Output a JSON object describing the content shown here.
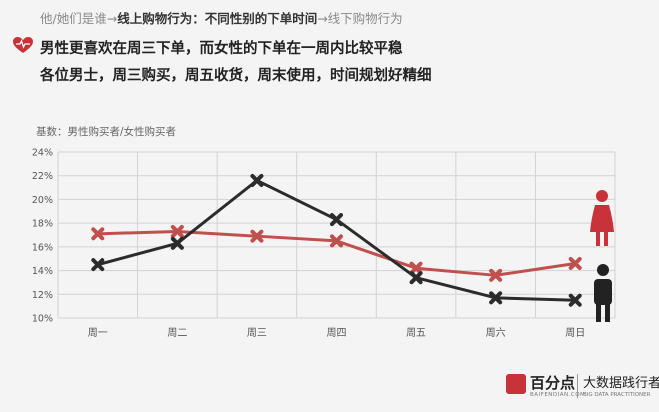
{
  "header": {
    "breadcrumb": {
      "part1": "他/她们是谁→",
      "part2": "线上购物行为：不同性别的下单时间",
      "part3": "→线下购物行为"
    },
    "headline1": "男性更喜欢在周三下单，而女性的下单在一周内比较平稳",
    "headline2": "各位男士，周三购买，周五收货，周末使用，时间规划好精细"
  },
  "base_label": "基数：男性购买者/女性购买者",
  "logo": {
    "brand": "百分点",
    "brand_sub": "BAIFENDIAN.COM",
    "brand2": "大数据践行者",
    "brand2_sub": "BIG DATA PRACTITIONER"
  },
  "chart_data": {
    "type": "line",
    "categories": [
      "周一",
      "周二",
      "周三",
      "周四",
      "周五",
      "周六",
      "周日"
    ],
    "ylim": [
      10,
      24
    ],
    "yticks": [
      "10%",
      "12%",
      "14%",
      "16%",
      "18%",
      "20%",
      "22%",
      "24%"
    ],
    "grid": true,
    "series": [
      {
        "key": "male",
        "values": [
          14.5,
          16.3,
          21.6,
          18.3,
          13.4,
          11.7,
          11.5
        ],
        "color": "#2b2b2b"
      },
      {
        "key": "female",
        "values": [
          17.1,
          17.3,
          16.9,
          16.5,
          14.2,
          13.6,
          14.6
        ],
        "color": "#c0504d"
      }
    ]
  },
  "colors": {
    "accent_red": "#c8333a",
    "female": "#c0504d",
    "male": "#2b2b2b"
  },
  "icons": {
    "headline": "heart-icon",
    "female_marker": "female-figure-icon",
    "male_marker": "male-figure-icon"
  }
}
